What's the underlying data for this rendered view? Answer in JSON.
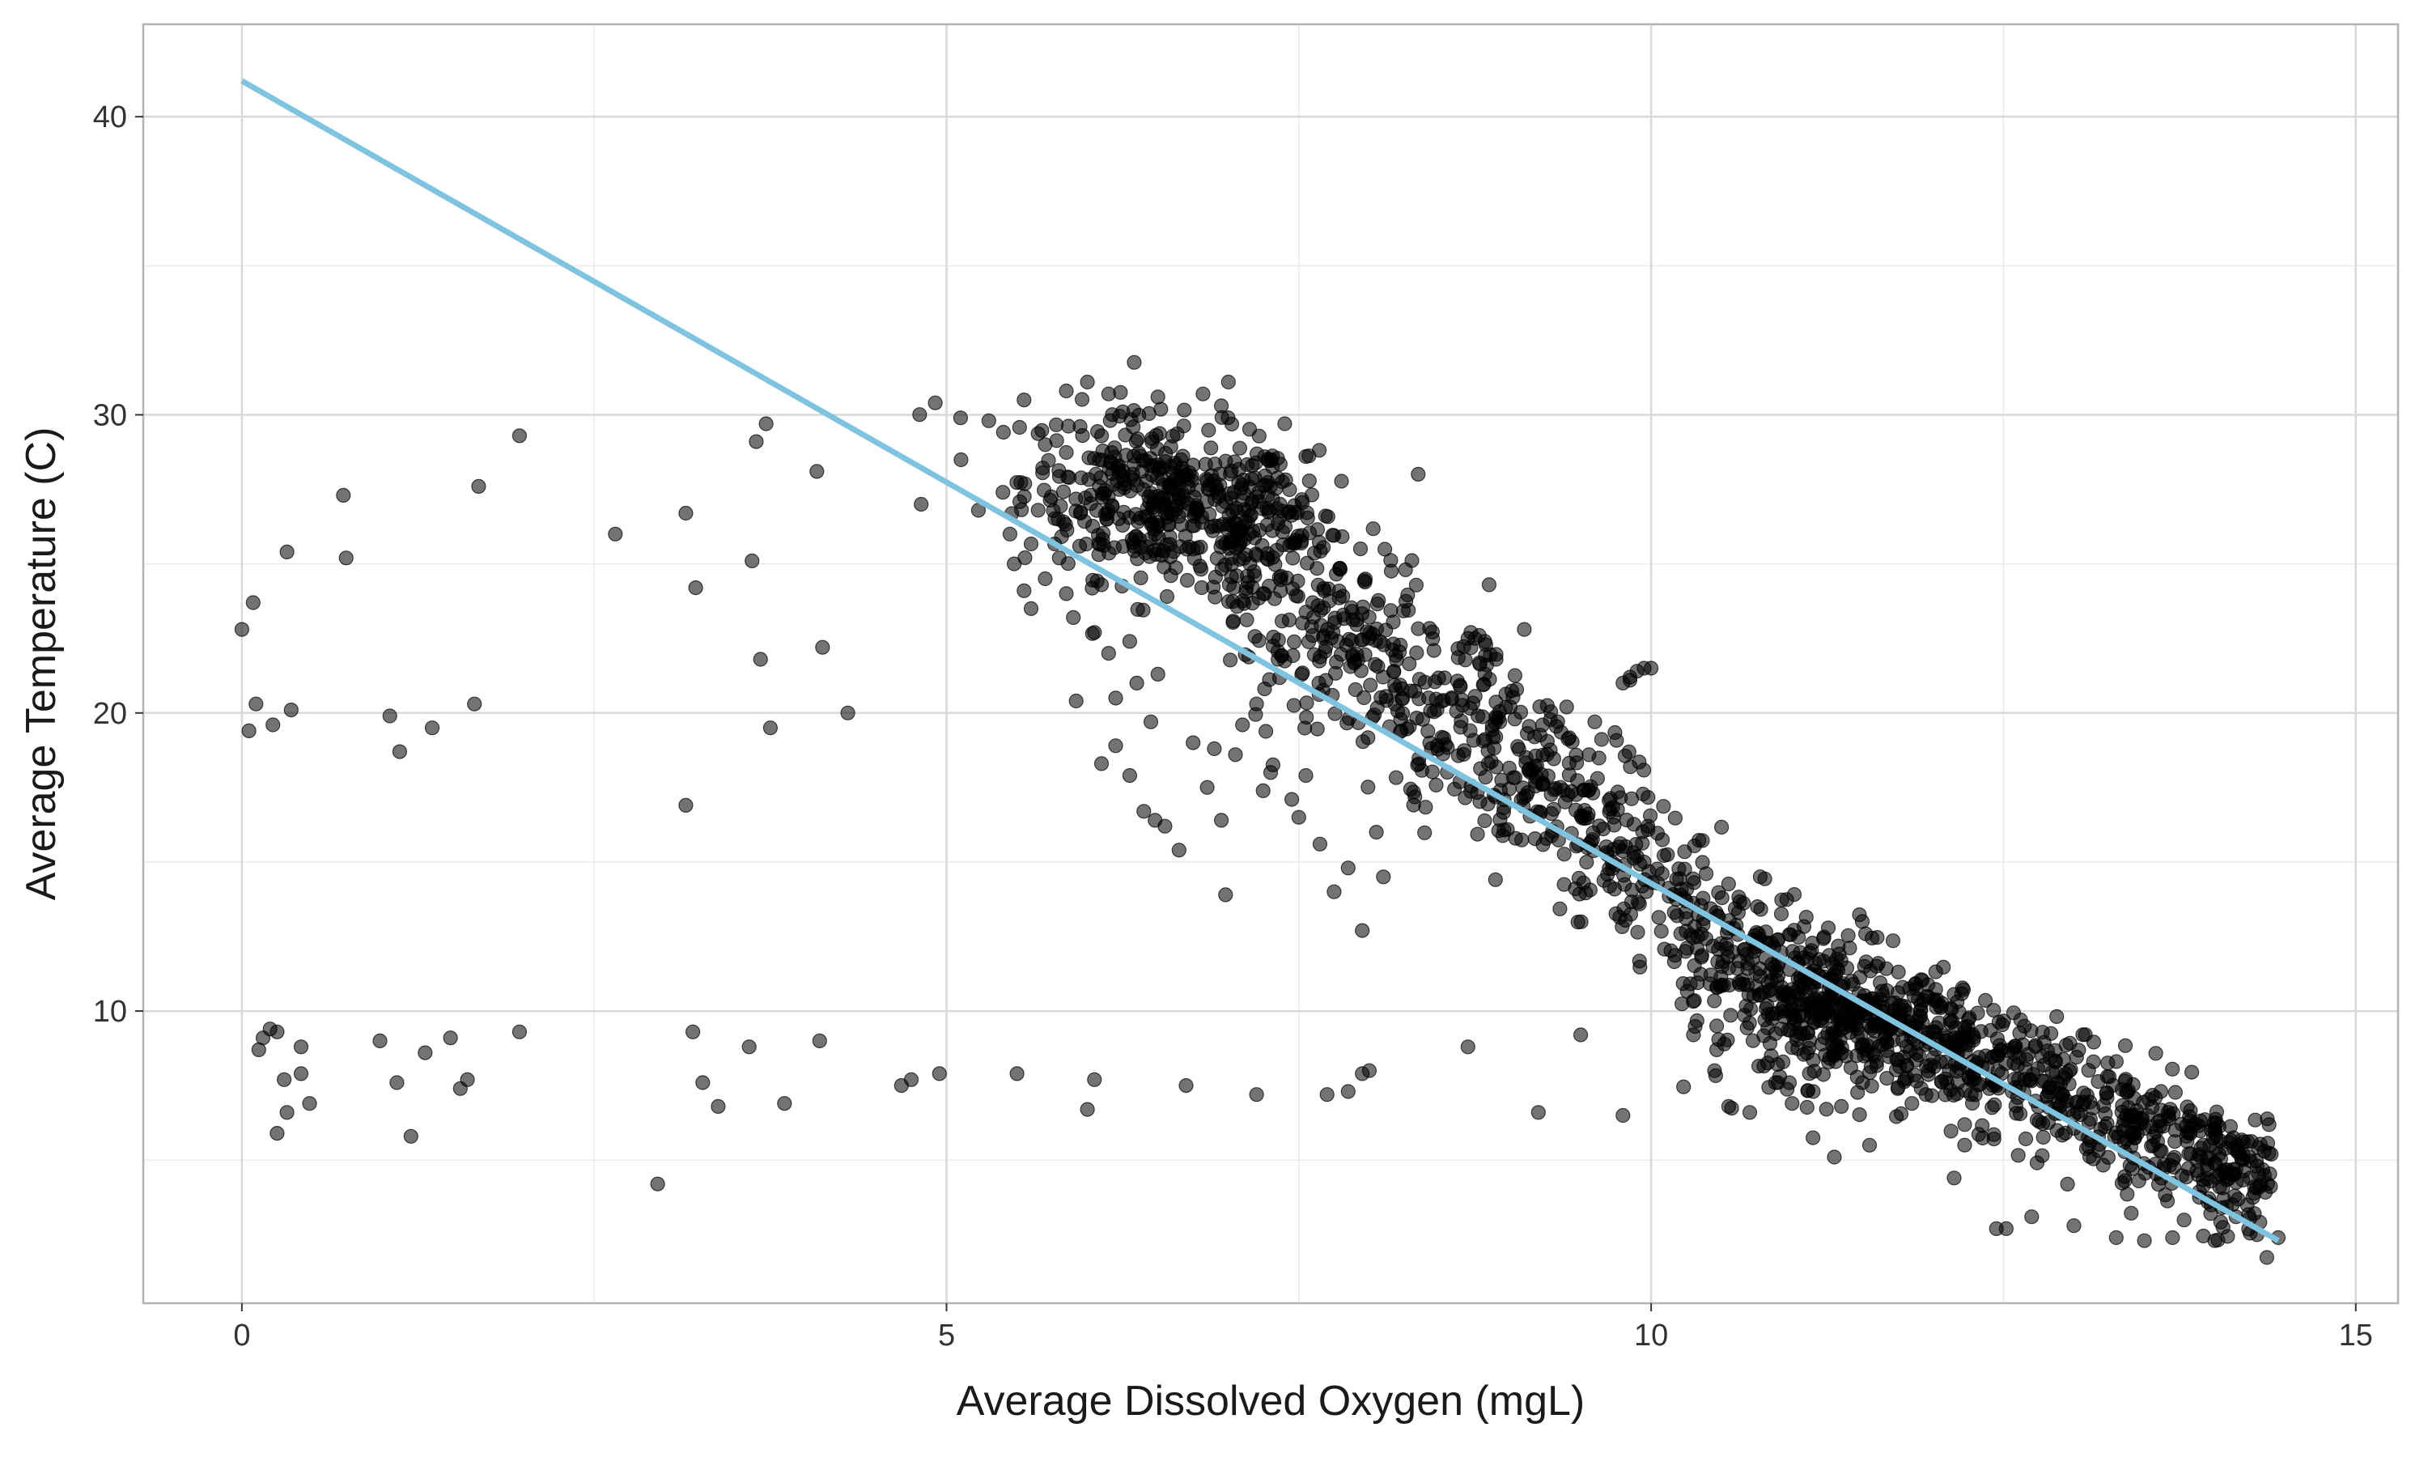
{
  "chart_data": {
    "type": "scatter",
    "title": "",
    "xlabel": "Average Dissolved Oxygen (mgL)",
    "ylabel": "Average Temperature (C)",
    "xlim": [
      -0.7,
      15.3
    ],
    "ylim": [
      0.2,
      43.1
    ],
    "x_ticks": [
      0,
      5,
      10,
      15
    ],
    "y_ticks": [
      10,
      20,
      30,
      40
    ],
    "grid": true,
    "point_color": "#000000",
    "point_opacity": 0.55,
    "trend_color": "#7EC4E1",
    "frame_color": "#B3B3B3",
    "grid_major_color": "#D9D9D9",
    "grid_minor_color": "#EBEBEB",
    "trend_line": {
      "x": [
        0,
        14.45
      ],
      "y": [
        41.2,
        2.3
      ]
    },
    "series": [
      {
        "name": "observations",
        "points": [
          [
            0.0,
            22.8
          ],
          [
            0.05,
            19.4
          ],
          [
            0.08,
            23.7
          ],
          [
            0.1,
            20.3
          ],
          [
            0.22,
            19.6
          ],
          [
            0.32,
            25.4
          ],
          [
            0.35,
            20.1
          ],
          [
            0.12,
            8.7
          ],
          [
            0.15,
            9.1
          ],
          [
            0.2,
            9.4
          ],
          [
            0.25,
            9.3
          ],
          [
            0.3,
            7.7
          ],
          [
            0.32,
            6.6
          ],
          [
            0.25,
            5.9
          ],
          [
            0.42,
            7.9
          ],
          [
            0.42,
            8.8
          ],
          [
            0.48,
            6.9
          ],
          [
            0.72,
            27.3
          ],
          [
            0.74,
            25.2
          ],
          [
            0.98,
            9.0
          ],
          [
            1.05,
            19.9
          ],
          [
            1.12,
            18.7
          ],
          [
            1.1,
            7.6
          ],
          [
            1.2,
            5.8
          ],
          [
            1.3,
            8.6
          ],
          [
            1.35,
            19.5
          ],
          [
            1.48,
            9.1
          ],
          [
            1.55,
            7.4
          ],
          [
            1.6,
            7.7
          ],
          [
            1.65,
            20.3
          ],
          [
            1.68,
            27.6
          ],
          [
            1.97,
            29.3
          ],
          [
            1.97,
            9.3
          ],
          [
            2.65,
            26.0
          ],
          [
            2.95,
            4.2
          ],
          [
            3.15,
            26.7
          ],
          [
            3.15,
            16.9
          ],
          [
            3.2,
            9.3
          ],
          [
            3.22,
            24.2
          ],
          [
            3.27,
            7.6
          ],
          [
            3.38,
            6.8
          ],
          [
            3.6,
            8.8
          ],
          [
            3.62,
            25.1
          ],
          [
            3.65,
            29.1
          ],
          [
            3.68,
            21.8
          ],
          [
            3.72,
            29.7
          ],
          [
            3.75,
            19.5
          ],
          [
            3.85,
            6.9
          ],
          [
            4.08,
            28.1
          ],
          [
            4.1,
            9.0
          ],
          [
            4.12,
            22.2
          ],
          [
            4.3,
            20.0
          ],
          [
            4.68,
            7.5
          ],
          [
            4.75,
            7.7
          ],
          [
            4.82,
            27.0
          ],
          [
            4.92,
            30.4
          ],
          [
            4.95,
            7.9
          ],
          [
            5.5,
            7.9
          ],
          [
            6.0,
            6.7
          ],
          [
            6.05,
            7.7
          ],
          [
            6.7,
            7.5
          ],
          [
            7.2,
            7.2
          ],
          [
            7.7,
            7.2
          ],
          [
            7.85,
            7.3
          ],
          [
            7.95,
            7.9
          ],
          [
            8.0,
            8.0
          ],
          [
            8.7,
            8.8
          ],
          [
            9.2,
            6.6
          ],
          [
            9.5,
            9.2
          ],
          [
            9.8,
            6.5
          ],
          [
            5.1,
            29.9
          ],
          [
            5.3,
            29.8
          ],
          [
            5.55,
            30.5
          ],
          [
            5.7,
            29.0
          ],
          [
            5.85,
            30.8
          ],
          [
            6.0,
            31.1
          ],
          [
            6.15,
            30.7
          ],
          [
            6.25,
            30.1
          ],
          [
            6.5,
            30.6
          ],
          [
            6.82,
            30.7
          ],
          [
            7.0,
            31.1
          ],
          [
            6.95,
            30.3
          ],
          [
            7.4,
            29.7
          ],
          [
            7.55,
            28.6
          ],
          [
            5.4,
            27.4
          ],
          [
            5.45,
            26.0
          ],
          [
            5.48,
            25.0
          ],
          [
            5.55,
            24.1
          ],
          [
            5.6,
            23.5
          ],
          [
            5.65,
            26.8
          ],
          [
            5.7,
            24.5
          ],
          [
            5.8,
            25.2
          ],
          [
            5.85,
            24.0
          ],
          [
            5.9,
            23.2
          ],
          [
            5.95,
            26.7
          ],
          [
            6.05,
            22.7
          ],
          [
            6.1,
            24.3
          ],
          [
            6.15,
            22.0
          ],
          [
            6.2,
            20.5
          ],
          [
            6.3,
            22.4
          ],
          [
            6.35,
            21.0
          ],
          [
            6.45,
            19.7
          ],
          [
            6.5,
            21.3
          ],
          [
            5.92,
            20.4
          ],
          [
            6.1,
            18.3
          ],
          [
            6.2,
            18.9
          ],
          [
            6.3,
            17.9
          ],
          [
            6.4,
            16.7
          ],
          [
            6.48,
            16.4
          ],
          [
            6.55,
            16.2
          ],
          [
            6.65,
            15.4
          ],
          [
            6.75,
            19.0
          ],
          [
            6.85,
            17.5
          ],
          [
            6.9,
            18.8
          ],
          [
            6.95,
            16.4
          ],
          [
            6.98,
            13.9
          ],
          [
            7.05,
            18.6
          ],
          [
            7.1,
            19.6
          ],
          [
            7.2,
            20.3
          ],
          [
            7.3,
            18.0
          ],
          [
            7.45,
            17.1
          ],
          [
            7.5,
            16.5
          ],
          [
            7.55,
            17.9
          ],
          [
            7.65,
            15.6
          ],
          [
            7.75,
            14.0
          ],
          [
            7.85,
            14.8
          ],
          [
            7.95,
            12.7
          ],
          [
            8.05,
            16.0
          ],
          [
            8.1,
            14.5
          ],
          [
            9.8,
            21.0
          ],
          [
            9.85,
            21.2
          ],
          [
            9.9,
            21.4
          ],
          [
            9.95,
            21.5
          ],
          [
            10.0,
            21.5
          ],
          [
            9.85,
            21.1
          ],
          [
            8.72,
            22.7
          ],
          [
            8.75,
            22.5
          ],
          [
            8.78,
            22.6
          ],
          [
            8.7,
            22.5
          ],
          [
            8.82,
            22.4
          ],
          [
            8.85,
            24.3
          ],
          [
            8.9,
            21.8
          ],
          [
            9.0,
            20.2
          ],
          [
            9.1,
            22.8
          ],
          [
            9.4,
            20.2
          ],
          [
            9.6,
            19.7
          ],
          [
            11.3,
            5.1
          ],
          [
            11.55,
            5.5
          ],
          [
            12.15,
            4.4
          ],
          [
            12.45,
            2.7
          ],
          [
            12.52,
            2.7
          ],
          [
            12.7,
            3.1
          ],
          [
            13.0,
            2.8
          ],
          [
            13.3,
            2.4
          ],
          [
            13.5,
            2.3
          ],
          [
            13.7,
            2.4
          ],
          [
            14.0,
            2.3
          ],
          [
            14.3,
            2.5
          ],
          [
            14.45,
            2.4
          ],
          [
            10.3,
            9.2
          ],
          [
            10.45,
            8.0
          ],
          [
            10.55,
            6.8
          ],
          [
            10.7,
            6.6
          ],
          [
            10.9,
            7.6
          ],
          [
            11.0,
            6.9
          ],
          [
            11.15,
            7.3
          ],
          [
            11.2,
            10.1
          ],
          [
            11.35,
            6.8
          ],
          [
            11.5,
            7.6
          ],
          [
            11.6,
            8.3
          ],
          [
            11.75,
            7.4
          ],
          [
            11.85,
            6.9
          ],
          [
            11.95,
            7.2
          ],
          [
            12.1,
            7.6
          ],
          [
            12.3,
            8.2
          ],
          [
            12.45,
            7.5
          ],
          [
            12.6,
            7.1
          ],
          [
            13.45,
            5.9
          ],
          [
            13.6,
            6.3
          ],
          [
            13.8,
            5.8
          ],
          [
            13.9,
            5.4
          ],
          [
            14.0,
            4.9
          ],
          [
            14.1,
            5.6
          ],
          [
            14.15,
            4.7
          ],
          [
            14.2,
            5.2
          ],
          [
            14.25,
            4.4
          ],
          [
            14.3,
            4.8
          ],
          [
            14.35,
            5.3
          ],
          [
            14.4,
            5.2
          ],
          [
            14.05,
            3.4
          ],
          [
            14.15,
            3.1
          ],
          [
            13.95,
            3.6
          ]
        ]
      }
    ]
  }
}
